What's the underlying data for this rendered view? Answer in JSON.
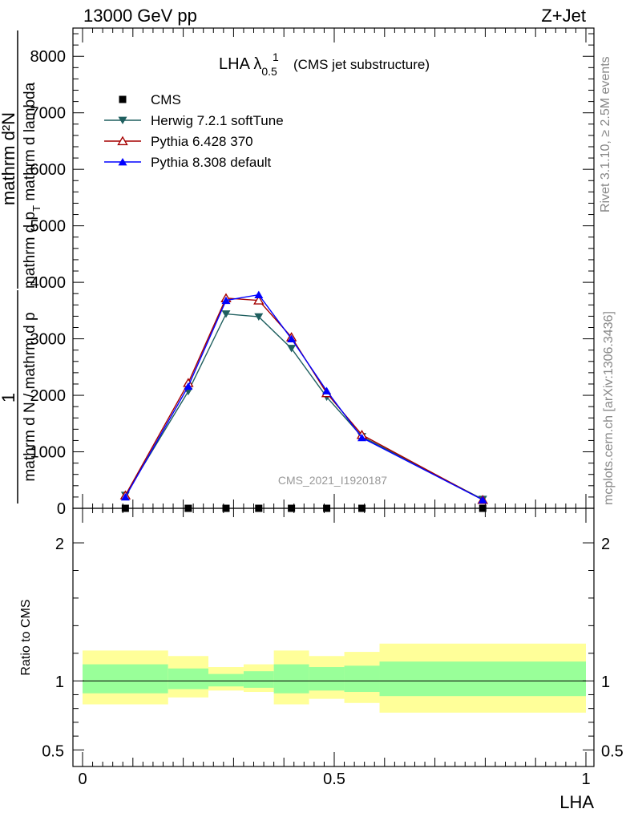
{
  "header": {
    "left": "13000 GeV pp",
    "right": "Z+Jet"
  },
  "side_notes": {
    "rivet": "Rivet 3.1.10, ≥ 2.5M events",
    "mcplots": "mcplots.cern.ch [arXiv:1306.3436]"
  },
  "watermark": "CMS_2021_I1920187",
  "chart_data": [
    {
      "type": "line",
      "title": {
        "main": "LHA λ",
        "superscript": "1",
        "subscript": "0.5",
        "suffix": " (CMS jet substructure)"
      },
      "ylabel": {
        "numerator_left": "1",
        "denominator_left": "mathrm d N / mathrm d p",
        "numerator_right": "mathrm d²N",
        "denominator_right": "mathrm d p",
        "denominator_right_sub": "T",
        "denominator_right_tail": " mathrm d lambda"
      },
      "xlim": [
        0,
        1
      ],
      "ylim": [
        0,
        8500
      ],
      "yticks": [
        0,
        1000,
        2000,
        3000,
        4000,
        5000,
        6000,
        7000,
        8000
      ],
      "ytick_labels": [
        "0",
        "1000",
        "2000",
        "3000",
        "4000",
        "5000",
        "6000",
        "7000",
        "8000"
      ],
      "legend_position": "top-left",
      "series": [
        {
          "name": "CMS",
          "color": "#000000",
          "marker": "square",
          "x": [
            0.085,
            0.21,
            0.285,
            0.35,
            0.415,
            0.485,
            0.555,
            0.795
          ],
          "y": [
            0,
            0,
            0,
            0,
            0,
            0,
            0,
            0
          ]
        },
        {
          "name": "Herwig 7.2.1 softTune",
          "color": "#1f5f5f",
          "marker": "triangle-down",
          "x": [
            0.085,
            0.21,
            0.285,
            0.35,
            0.415,
            0.485,
            0.555,
            0.795
          ],
          "y": [
            230,
            2070,
            3440,
            3390,
            2830,
            1970,
            1270,
            160
          ]
        },
        {
          "name": "Pythia 6.428 370",
          "color": "#a50000",
          "marker": "triangle-up-open",
          "x": [
            0.085,
            0.21,
            0.285,
            0.35,
            0.415,
            0.485,
            0.555,
            0.795
          ],
          "y": [
            230,
            2220,
            3720,
            3680,
            3030,
            2040,
            1300,
            150
          ]
        },
        {
          "name": "Pythia 8.308 default",
          "color": "#0000ff",
          "marker": "triangle-up",
          "x": [
            0.085,
            0.21,
            0.285,
            0.35,
            0.415,
            0.485,
            0.555,
            0.795
          ],
          "y": [
            200,
            2160,
            3680,
            3780,
            3000,
            2080,
            1250,
            150
          ]
        }
      ]
    },
    {
      "type": "area",
      "ylabel": "Ratio to CMS",
      "xlabel": "LHA",
      "xlim": [
        0,
        1
      ],
      "ylim": [
        0.38,
        2.25
      ],
      "yticks": [
        0.5,
        1,
        2
      ],
      "ytick_labels": [
        "0.5",
        "1",
        "2"
      ],
      "xticks": [
        0,
        0.5,
        1
      ],
      "xtick_labels": [
        "0",
        "0.5",
        "1"
      ],
      "reference_line": 1,
      "bins": [
        {
          "x0": 0.0,
          "x1": 0.17,
          "inner": [
            0.91,
            1.12
          ],
          "outer": [
            0.83,
            1.22
          ]
        },
        {
          "x0": 0.17,
          "x1": 0.25,
          "inner": [
            0.94,
            1.09
          ],
          "outer": [
            0.88,
            1.18
          ]
        },
        {
          "x0": 0.25,
          "x1": 0.32,
          "inner": [
            0.96,
            1.05
          ],
          "outer": [
            0.93,
            1.1
          ]
        },
        {
          "x0": 0.32,
          "x1": 0.38,
          "inner": [
            0.95,
            1.07
          ],
          "outer": [
            0.92,
            1.12
          ]
        },
        {
          "x0": 0.38,
          "x1": 0.45,
          "inner": [
            0.91,
            1.12
          ],
          "outer": [
            0.83,
            1.22
          ]
        },
        {
          "x0": 0.45,
          "x1": 0.52,
          "inner": [
            0.93,
            1.1
          ],
          "outer": [
            0.87,
            1.18
          ]
        },
        {
          "x0": 0.52,
          "x1": 0.59,
          "inner": [
            0.92,
            1.11
          ],
          "outer": [
            0.84,
            1.21
          ]
        },
        {
          "x0": 0.59,
          "x1": 1.0,
          "inner": [
            0.89,
            1.14
          ],
          "outer": [
            0.77,
            1.27
          ]
        }
      ],
      "colors": {
        "inner": "#99ff99",
        "outer": "#ffff99"
      }
    }
  ]
}
